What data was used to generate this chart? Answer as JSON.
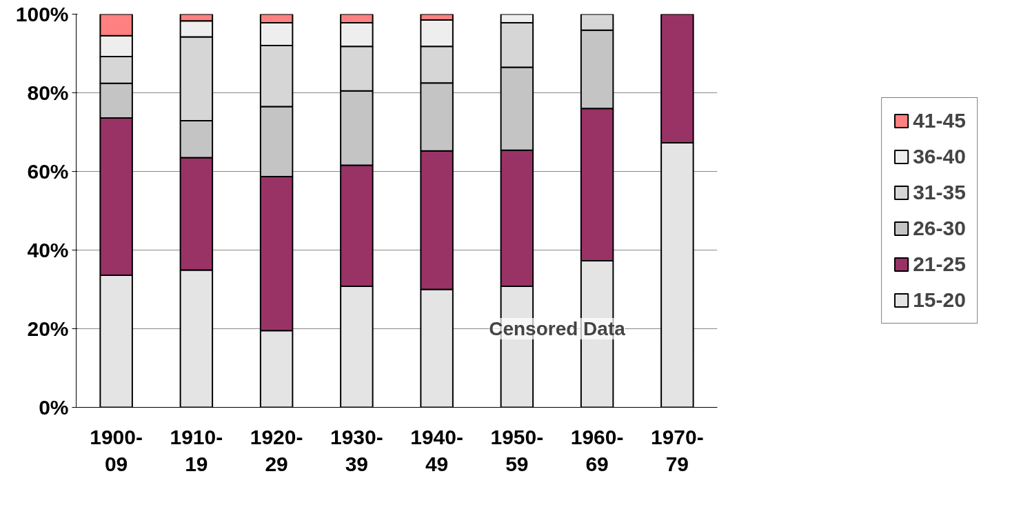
{
  "chart_data": {
    "type": "bar",
    "stacked": true,
    "categories": [
      "1900-09",
      "1910-19",
      "1920-29",
      "1930-39",
      "1940-49",
      "1950-59",
      "1960-69",
      "1970-79"
    ],
    "series": [
      {
        "name": "15-20",
        "color": "#e4e4e4",
        "values": [
          33.6,
          34.9,
          19.5,
          30.8,
          30,
          30.8,
          37.3,
          67.3
        ]
      },
      {
        "name": "21-25",
        "color": "#993366",
        "values": [
          40,
          28.6,
          39.2,
          30.8,
          35.2,
          34.6,
          38.7,
          32.7
        ]
      },
      {
        "name": "26-30",
        "color": "#c4c4c4",
        "values": [
          8.8,
          9.4,
          17.8,
          18.9,
          17.3,
          21.1,
          19.9,
          null
        ]
      },
      {
        "name": "31-35",
        "color": "#d6d6d6",
        "values": [
          6.8,
          21.3,
          15.5,
          11.3,
          9.3,
          11.3,
          4.1,
          null
        ]
      },
      {
        "name": "36-40",
        "color": "#eeeeee",
        "values": [
          5.3,
          4.1,
          5.8,
          6,
          6.7,
          2.2,
          null,
          null
        ]
      },
      {
        "name": "41-45",
        "color": "#ff8080",
        "values": [
          5.5,
          1.7,
          2.2,
          2.2,
          1.5,
          null,
          null,
          null
        ]
      }
    ],
    "ylim": [
      0,
      100
    ],
    "yticks": [
      {
        "value": 0,
        "label": "0%"
      },
      {
        "value": 20,
        "label": "20%"
      },
      {
        "value": 40,
        "label": "40%"
      },
      {
        "value": 60,
        "label": "60%"
      },
      {
        "value": 80,
        "label": "80%"
      },
      {
        "value": 100,
        "label": "100%"
      }
    ],
    "grid": "y",
    "legend": "right",
    "annotations": [
      "Censored Data"
    ]
  }
}
